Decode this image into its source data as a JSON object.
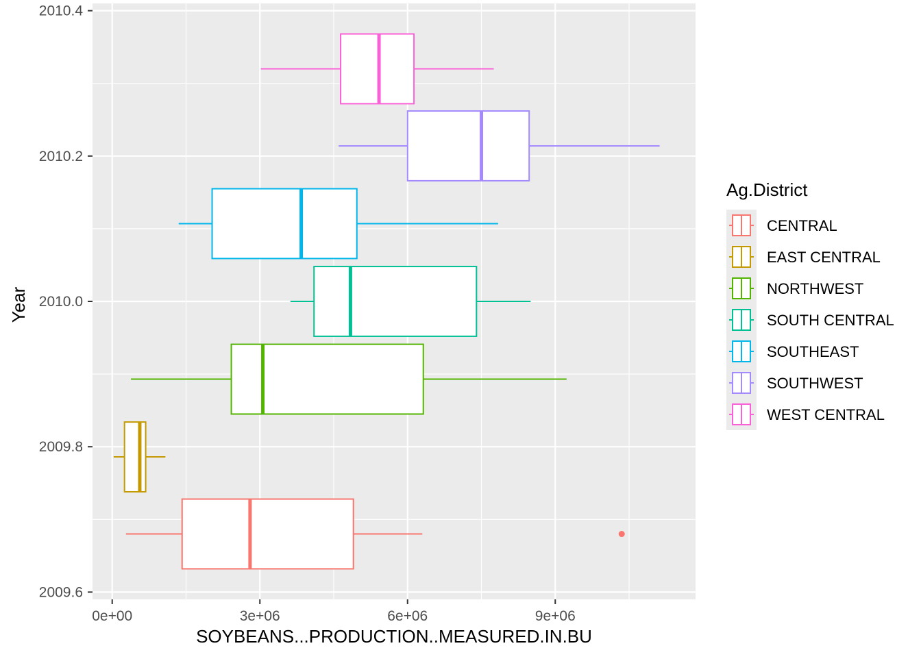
{
  "chart_data": {
    "type": "boxplot",
    "orientation": "horizontal",
    "xlabel": "SOYBEANS...PRODUCTION..MEASURED.IN.BU",
    "ylabel": "Year",
    "xlim": [
      -400000,
      11850000
    ],
    "ylim": [
      2009.59,
      2010.41
    ],
    "x_ticks": [
      0,
      3000000,
      6000000,
      9000000
    ],
    "x_tick_labels": [
      "0e+00",
      "3e+06",
      "6e+06",
      "9e+06"
    ],
    "y_ticks": [
      2009.6,
      2009.8,
      2010.0,
      2010.2,
      2010.4
    ],
    "y_tick_labels": [
      "2009.6",
      "2009.8",
      "2010.0",
      "2010.2",
      "2010.4"
    ],
    "grid": true,
    "legend": {
      "title": "Ag.District",
      "position": "right",
      "entries": [
        "CENTRAL",
        "EAST CENTRAL",
        "NORTHWEST",
        "SOUTH CENTRAL",
        "SOUTHEAST",
        "SOUTHWEST",
        "WEST CENTRAL"
      ]
    },
    "series": [
      {
        "name": "CENTRAL",
        "color": "#F8766D",
        "y": 2009.68,
        "height": 0.096,
        "whisker_low": 280000,
        "q1": 1420000,
        "median": 2800000,
        "q3": 4900000,
        "whisker_high": 6300000,
        "outliers": [
          10350000
        ]
      },
      {
        "name": "EAST CENTRAL",
        "color": "#C49A00",
        "y": 2009.786,
        "height": 0.096,
        "whisker_low": 30000,
        "q1": 250000,
        "median": 560000,
        "q3": 680000,
        "whisker_high": 1080000,
        "outliers": []
      },
      {
        "name": "NORTHWEST",
        "color": "#53B400",
        "y": 2009.893,
        "height": 0.096,
        "whisker_low": 380000,
        "q1": 2420000,
        "median": 3060000,
        "q3": 6320000,
        "whisker_high": 9230000,
        "outliers": []
      },
      {
        "name": "SOUTH CENTRAL",
        "color": "#00C094",
        "y": 2010.0,
        "height": 0.096,
        "whisker_low": 3620000,
        "q1": 4100000,
        "median": 4840000,
        "q3": 7400000,
        "whisker_high": 8500000,
        "outliers": []
      },
      {
        "name": "SOUTHEAST",
        "color": "#00B6EB",
        "y": 2010.107,
        "height": 0.096,
        "whisker_low": 1350000,
        "q1": 2030000,
        "median": 3840000,
        "q3": 4970000,
        "whisker_high": 7840000,
        "outliers": []
      },
      {
        "name": "SOUTHWEST",
        "color": "#A58AFF",
        "y": 2010.214,
        "height": 0.096,
        "whisker_low": 4600000,
        "q1": 6000000,
        "median": 7500000,
        "q3": 8470000,
        "whisker_high": 11120000,
        "outliers": []
      },
      {
        "name": "WEST CENTRAL",
        "color": "#FB61D7",
        "y": 2010.32,
        "height": 0.096,
        "whisker_low": 3020000,
        "q1": 4640000,
        "median": 5420000,
        "q3": 6130000,
        "whisker_high": 7750000,
        "outliers": []
      }
    ]
  },
  "colors": {
    "panel_background": "#EBEBEB",
    "grid_major": "#FFFFFF",
    "axis_text": "#4D4D4D",
    "axis_title": "#000000"
  }
}
